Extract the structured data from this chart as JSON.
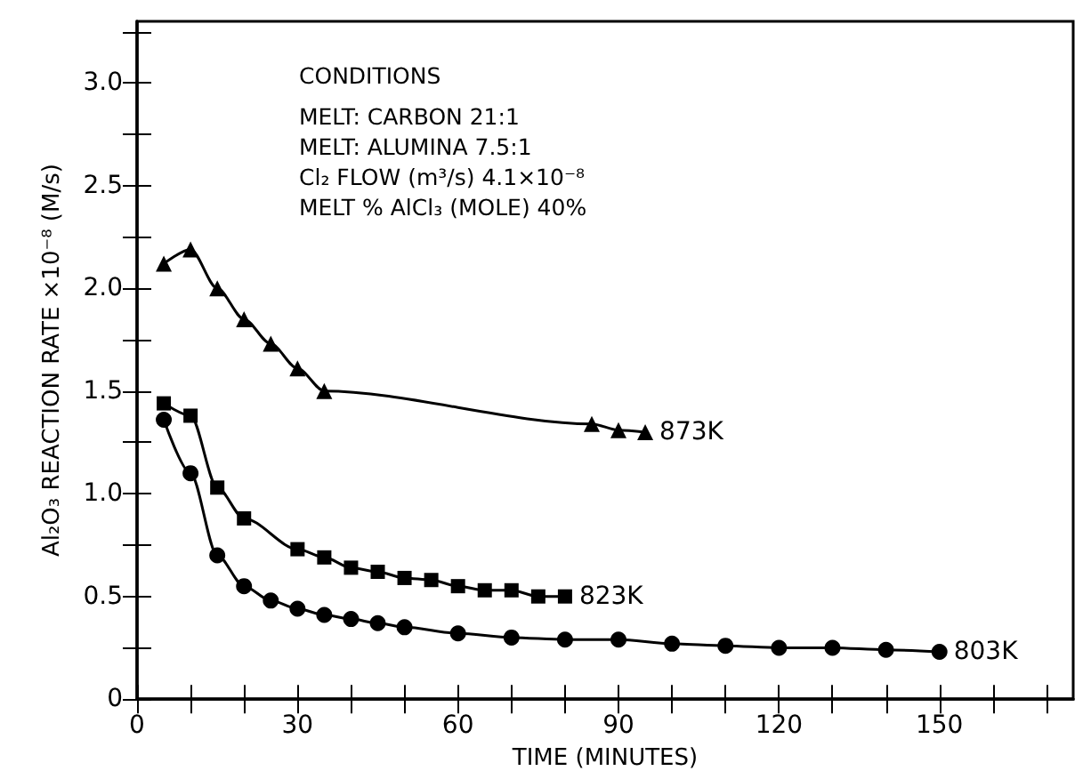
{
  "chart_data": {
    "type": "line",
    "xlabel": "TIME (MINUTES)",
    "ylabel": "Al₂O₃ REACTION RATE ×10⁻⁸ (M/s)",
    "annotations": [
      "CONDITIONS",
      "MELT: CARBON 21:1",
      "MELT: ALUMINA 7.5:1",
      "Cl₂ FLOW (m³/s) 4.1×10⁻⁸",
      "MELT % AlCl₃ (MOLE) 40%"
    ],
    "xlim": [
      0,
      175
    ],
    "ylim": [
      0,
      3.3
    ],
    "xticks": [
      0,
      {
        "value": 10,
        "label": null
      },
      {
        "value": 20,
        "label": null
      },
      30,
      {
        "value": 40,
        "label": null
      },
      {
        "value": 50,
        "label": null
      },
      60,
      {
        "value": 70,
        "label": null
      },
      {
        "value": 80,
        "label": null
      },
      90,
      {
        "value": 100,
        "label": null
      },
      {
        "value": 110,
        "label": null
      },
      120,
      {
        "value": 130,
        "label": null
      },
      {
        "value": 140,
        "label": null
      },
      150,
      {
        "value": 160,
        "label": null
      },
      {
        "value": 170,
        "label": null
      }
    ],
    "yticks": [
      {
        "value": 0,
        "label": "0"
      },
      {
        "value": 0.25,
        "label": null
      },
      0.5,
      {
        "value": 0.75,
        "label": null
      },
      {
        "value": 1,
        "label": "1.0"
      },
      {
        "value": 1.25,
        "label": null
      },
      1.5,
      {
        "value": 1.75,
        "label": null
      },
      {
        "value": 2,
        "label": "2.0"
      },
      {
        "value": 2.25,
        "label": null
      },
      2.5,
      {
        "value": 2.75,
        "label": null
      },
      {
        "value": 3,
        "label": "3.0"
      },
      {
        "value": 3.25,
        "label": null
      }
    ],
    "grid": false,
    "legend": false,
    "line_style": "solid",
    "series": [
      {
        "name": "873K",
        "color": "#000000",
        "marker": "triangle",
        "x": [
          5,
          10,
          15,
          20,
          25,
          30,
          35,
          85,
          90,
          95
        ],
        "values": [
          2.12,
          2.19,
          2.0,
          1.85,
          1.73,
          1.61,
          1.5,
          1.34,
          1.31,
          1.3
        ]
      },
      {
        "name": "823K",
        "color": "#000000",
        "marker": "square",
        "x": [
          5,
          10,
          15,
          20,
          30,
          35,
          40,
          45,
          50,
          55,
          60,
          65,
          70,
          75,
          80
        ],
        "values": [
          1.44,
          1.38,
          1.03,
          0.88,
          0.73,
          0.69,
          0.64,
          0.62,
          0.59,
          0.58,
          0.55,
          0.53,
          0.53,
          0.5,
          0.5
        ]
      },
      {
        "name": "803K",
        "color": "#000000",
        "marker": "circle",
        "x": [
          5,
          10,
          15,
          20,
          25,
          30,
          35,
          40,
          45,
          50,
          60,
          70,
          80,
          90,
          100,
          110,
          120,
          130,
          140,
          150
        ],
        "values": [
          1.36,
          1.1,
          0.7,
          0.55,
          0.48,
          0.44,
          0.41,
          0.39,
          0.37,
          0.35,
          0.32,
          0.3,
          0.29,
          0.29,
          0.27,
          0.26,
          0.25,
          0.25,
          0.24,
          0.23
        ]
      }
    ]
  }
}
